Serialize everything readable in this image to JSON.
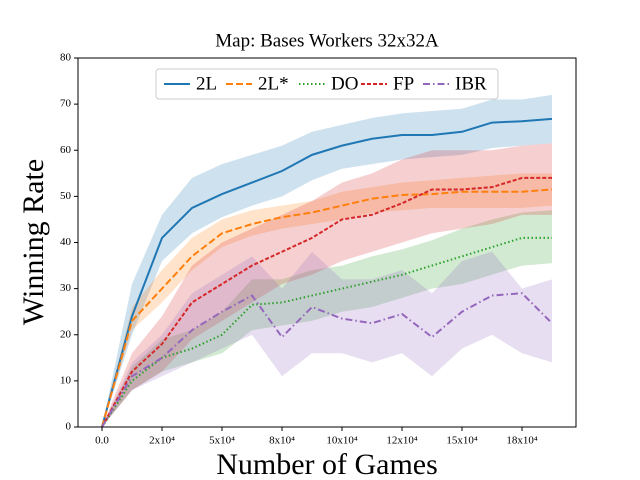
{
  "chart_data": {
    "type": "line",
    "title": "Map: Bases Workers 32x32A",
    "x_label": "Number of Games",
    "y_label": "Winning Rate",
    "categories": [
      "0.0",
      null,
      "2x10⁴",
      null,
      "5x10⁴",
      null,
      "8x10⁴",
      null,
      "10x10⁴",
      null,
      "12x10⁴",
      null,
      "15x10⁴",
      null,
      "18x10⁴",
      null
    ],
    "ylim": [
      0,
      80
    ],
    "yticks": [
      0,
      10,
      20,
      30,
      40,
      50,
      60,
      70,
      80
    ],
    "grid": false,
    "legend": "upper center",
    "series": [
      {
        "name": "2L",
        "color": "#1f77b4",
        "style": "solid",
        "values": [
          0,
          24,
          41,
          47.5,
          50.5,
          53,
          55.5,
          59,
          61,
          62.5,
          63.3,
          63.3,
          64,
          66,
          66.3,
          66.8
        ],
        "lower": [
          0,
          20,
          36,
          42,
          45.5,
          48,
          50,
          53.5,
          56,
          57,
          58,
          58.5,
          59,
          60.5,
          61,
          61.5
        ],
        "upper": [
          0,
          31,
          46,
          54,
          57,
          59,
          61,
          64,
          65.5,
          67,
          68,
          68.5,
          69,
          71,
          71,
          72
        ]
      },
      {
        "name": "2L*",
        "color": "#ff7f0e",
        "style": "dashed",
        "values": [
          0,
          23,
          30,
          37,
          42,
          44,
          45.5,
          46.5,
          48,
          49.5,
          50.3,
          50.5,
          51,
          51,
          51,
          51.5
        ],
        "lower": [
          0,
          21,
          27,
          34,
          39,
          41.5,
          43,
          44,
          45,
          46.5,
          47,
          47.5,
          47.5,
          47.5,
          47.5,
          48
        ],
        "upper": [
          0,
          26,
          34,
          41,
          45,
          47,
          48,
          49,
          51,
          52,
          53,
          53.5,
          54,
          54.5,
          55,
          55
        ]
      },
      {
        "name": "DO",
        "color": "#2ca02c",
        "style": "dotted",
        "values": [
          0,
          10,
          15,
          17,
          20,
          26.5,
          27,
          28.5,
          30,
          31.5,
          33,
          35,
          37,
          39,
          41,
          41
        ],
        "lower": [
          0,
          8,
          12,
          14,
          16,
          21,
          22,
          23,
          25,
          26,
          28,
          30,
          31,
          33,
          35,
          35.5
        ],
        "upper": [
          0,
          13,
          19,
          21,
          25,
          32,
          32,
          34,
          35,
          37,
          38.5,
          40.5,
          43,
          45,
          46.5,
          47
        ]
      },
      {
        "name": "FP",
        "color": "#d62728",
        "style": "dashdense",
        "values": [
          0,
          12,
          18,
          27,
          31,
          35,
          38,
          41,
          45,
          46,
          48.5,
          51.5,
          51.5,
          52,
          54,
          54
        ],
        "lower": [
          0,
          8,
          12,
          19,
          23,
          27,
          31,
          33,
          36,
          38,
          40,
          42,
          43,
          44,
          46,
          46
        ],
        "upper": [
          0,
          16,
          24,
          35,
          40,
          43,
          46,
          49,
          53,
          55,
          58,
          60,
          60,
          60,
          61,
          61.5
        ]
      },
      {
        "name": "IBR",
        "color": "#9467bd",
        "style": "dashdot",
        "values": [
          0,
          11,
          15,
          21,
          25,
          28.5,
          19.5,
          26,
          23.5,
          22.5,
          24.5,
          19.5,
          25,
          28.5,
          29,
          22.5
        ],
        "lower": [
          0,
          8,
          11,
          14,
          17,
          20,
          11,
          16,
          16,
          14,
          16,
          11,
          17,
          20,
          16,
          14
        ],
        "upper": [
          0,
          14,
          20,
          29,
          33,
          37,
          30,
          38,
          32,
          32,
          34,
          29,
          36,
          38,
          30,
          32
        ]
      }
    ]
  }
}
